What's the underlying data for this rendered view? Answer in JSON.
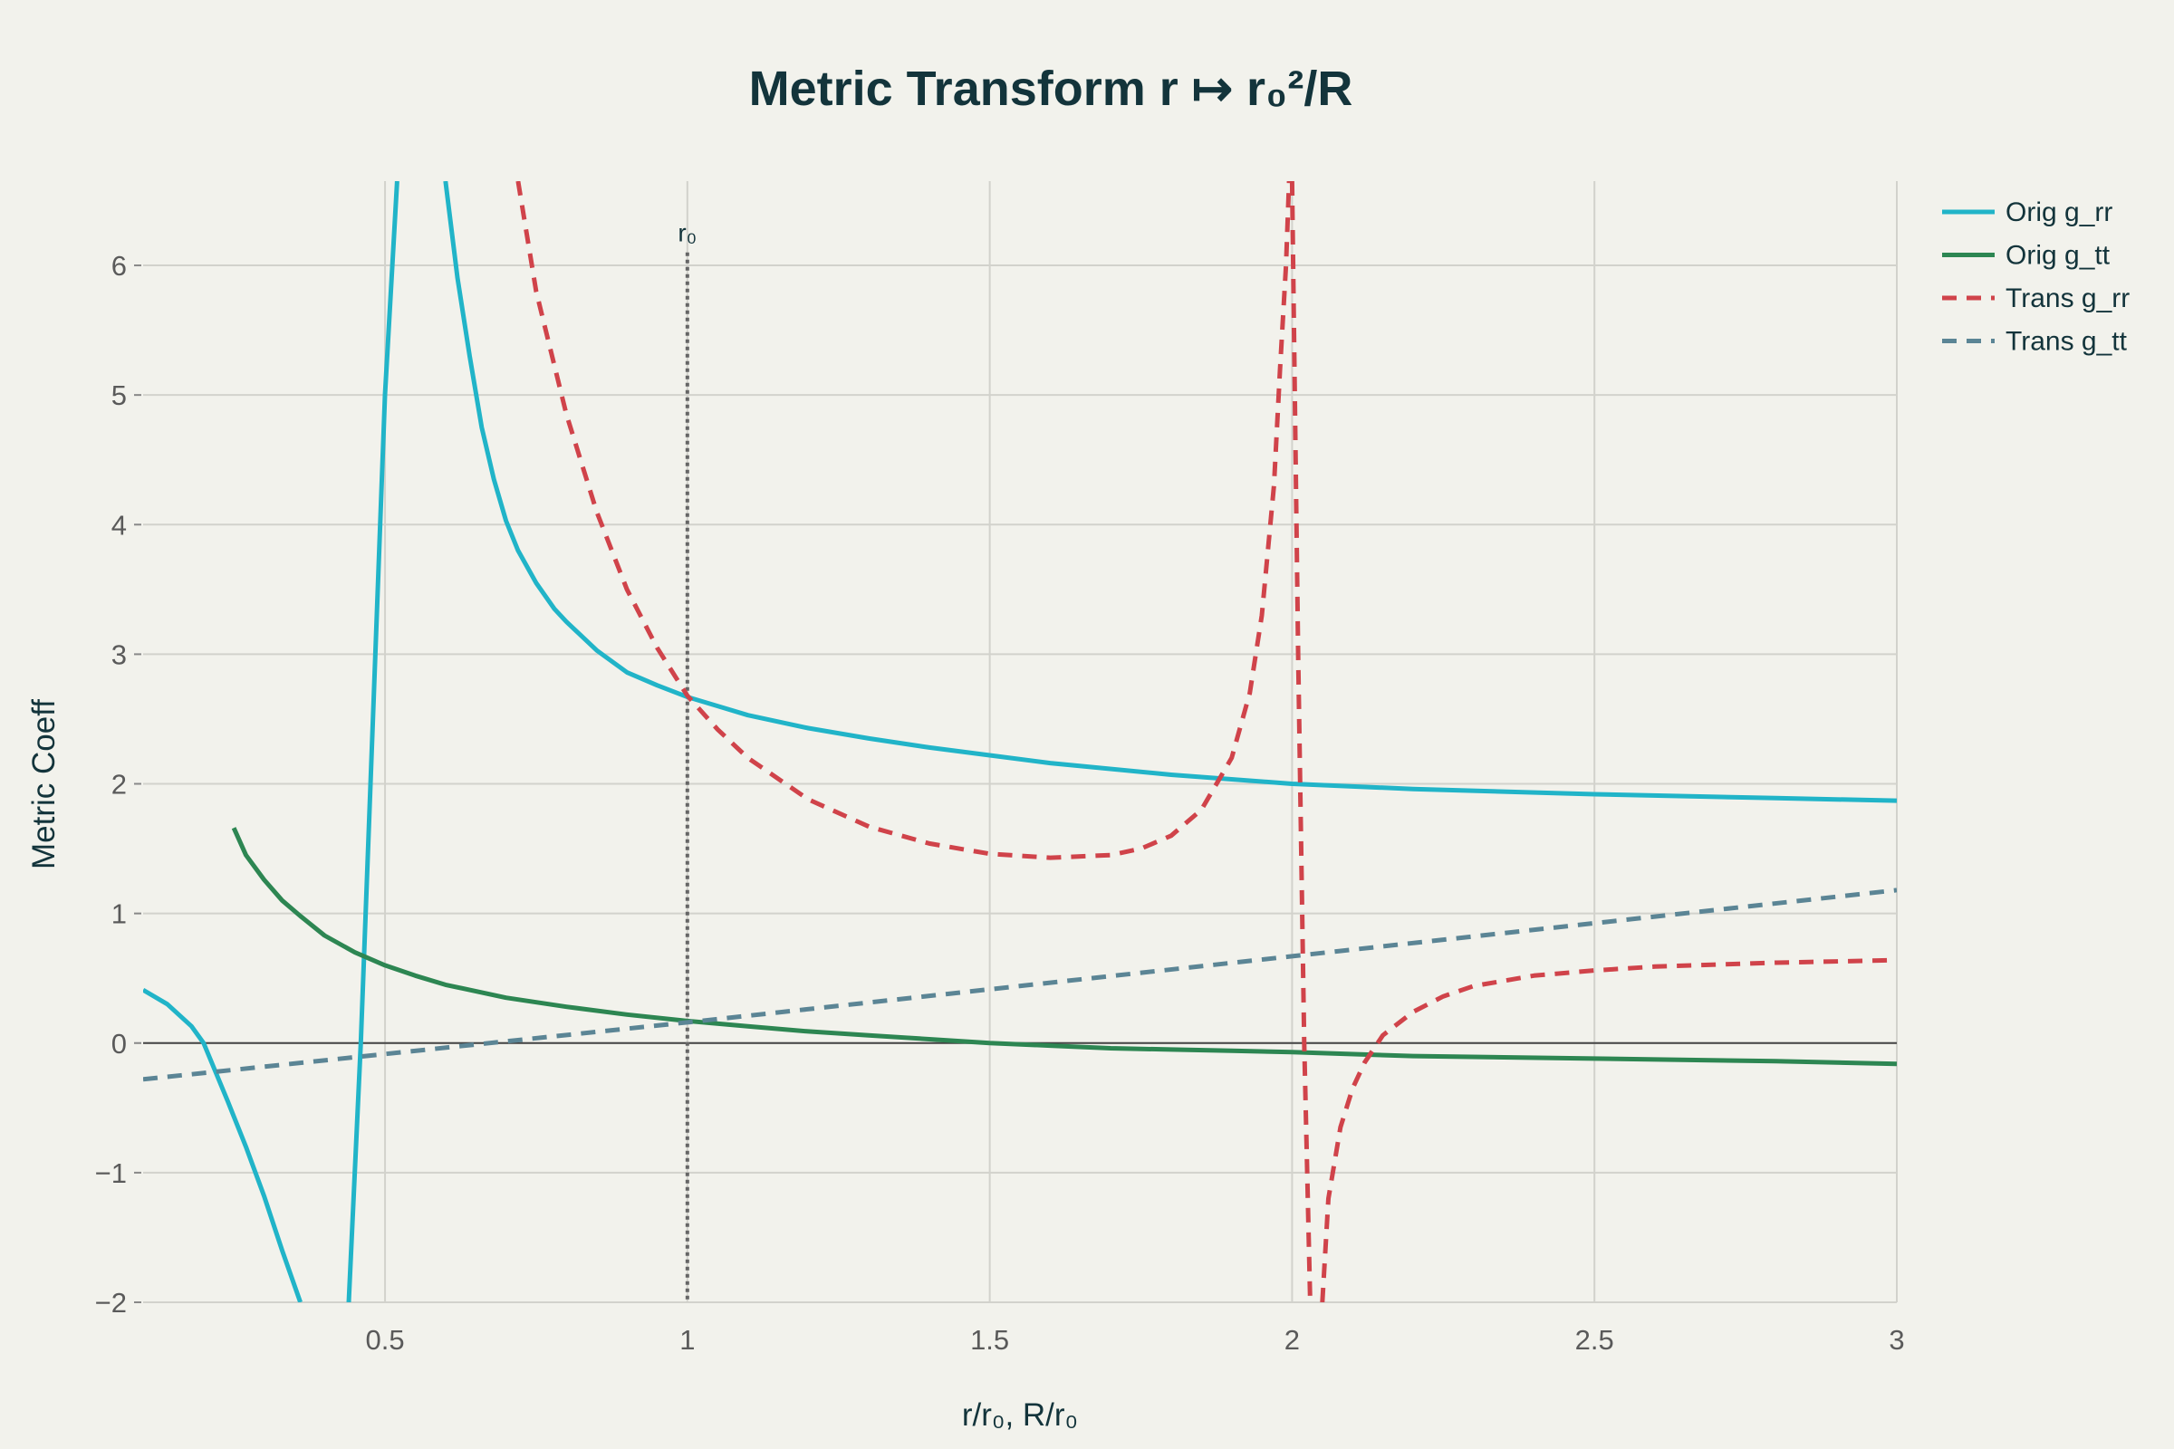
{
  "chart_data": {
    "type": "line",
    "title": "Metric Transform r ↦ r₀²/R",
    "xlabel": "r/r₀, R/r₀",
    "ylabel": "Metric Coeff",
    "xlim": [
      0.1,
      3.0
    ],
    "ylim": [
      -2,
      6.65
    ],
    "x_ticks": [
      0.5,
      1,
      1.5,
      2,
      2.5,
      3
    ],
    "x_tick_labels": [
      "0.5",
      "1",
      "1.5",
      "2",
      "2.5",
      "3"
    ],
    "y_ticks": [
      -2,
      -1,
      0,
      1,
      2,
      3,
      4,
      5,
      6
    ],
    "y_tick_labels": [
      "−2",
      "−1",
      "0",
      "1",
      "2",
      "3",
      "4",
      "5",
      "6"
    ],
    "grid": true,
    "zero_line": true,
    "legend_position": "top-right",
    "annotation": {
      "x": 1,
      "label": "r₀"
    },
    "series": [
      {
        "name": "Orig g_rr",
        "color": "#21b4c8",
        "dash": "solid",
        "segments": [
          {
            "x": [
              0.1,
              0.14,
              0.18,
              0.2,
              0.24,
              0.27,
              0.3,
              0.33,
              0.36
            ],
            "y": [
              0.41,
              0.3,
              0.13,
              0.0,
              -0.45,
              -0.8,
              -1.18,
              -1.6,
              -2.0
            ]
          },
          {
            "x": [
              0.44,
              0.46,
              0.48,
              0.5,
              0.52
            ],
            "y": [
              -2.0,
              0.0,
              2.5,
              5.0,
              6.65
            ]
          },
          {
            "x": [
              0.6,
              0.62,
              0.64,
              0.66,
              0.68,
              0.7,
              0.72,
              0.75,
              0.78,
              0.8,
              0.85,
              0.9,
              0.95,
              1.0,
              1.05,
              1.1,
              1.2,
              1.3,
              1.4,
              1.5,
              1.6,
              1.8,
              2.0,
              2.2,
              2.5,
              2.8,
              3.0
            ],
            "y": [
              6.65,
              5.9,
              5.3,
              4.75,
              4.35,
              4.03,
              3.8,
              3.55,
              3.35,
              3.25,
              3.03,
              2.86,
              2.76,
              2.67,
              2.6,
              2.53,
              2.43,
              2.35,
              2.28,
              2.22,
              2.16,
              2.07,
              2.0,
              1.96,
              1.92,
              1.89,
              1.87
            ]
          }
        ]
      },
      {
        "name": "Orig g_tt",
        "color": "#2d8652",
        "dash": "solid",
        "segments": [
          {
            "x": [
              0.25,
              0.27,
              0.3,
              0.33,
              0.36,
              0.4,
              0.45,
              0.5,
              0.55,
              0.6,
              0.7,
              0.8,
              0.9,
              1.0,
              1.1,
              1.2,
              1.3,
              1.4,
              1.5,
              1.6,
              1.7,
              1.8,
              1.9,
              2.0,
              2.2,
              2.5,
              2.8,
              3.0
            ],
            "y": [
              1.66,
              1.45,
              1.26,
              1.1,
              0.98,
              0.83,
              0.7,
              0.6,
              0.52,
              0.45,
              0.35,
              0.28,
              0.22,
              0.17,
              0.13,
              0.09,
              0.06,
              0.03,
              0.0,
              -0.02,
              -0.04,
              -0.05,
              -0.06,
              -0.07,
              -0.1,
              -0.12,
              -0.14,
              -0.16
            ]
          }
        ]
      },
      {
        "name": "Trans g_rr",
        "color": "#d0434a",
        "dash": "dashed",
        "segments": [
          {
            "x": [
              0.72,
              0.75,
              0.8,
              0.85,
              0.9,
              0.95,
              1.0,
              1.05,
              1.1,
              1.2,
              1.3,
              1.4,
              1.5,
              1.6,
              1.7,
              1.75,
              1.8,
              1.85,
              1.9,
              1.93,
              1.95,
              1.97,
              1.98,
              1.99,
              1.995
            ],
            "y": [
              6.65,
              5.8,
              4.85,
              4.1,
              3.5,
              3.05,
              2.68,
              2.42,
              2.2,
              1.88,
              1.67,
              1.54,
              1.46,
              1.43,
              1.45,
              1.5,
              1.6,
              1.8,
              2.2,
              2.7,
              3.3,
              4.3,
              5.2,
              6.0,
              6.65
            ]
          },
          {
            "x": [
              2.0,
              2.01,
              2.02,
              2.03
            ],
            "y": [
              6.65,
              3.0,
              0.0,
              -2.0
            ]
          },
          {
            "x": [
              2.05,
              2.06,
              2.08,
              2.1,
              2.12,
              2.15,
              2.2,
              2.25,
              2.3,
              2.4,
              2.5,
              2.6,
              2.8,
              3.0
            ],
            "y": [
              -2.0,
              -1.2,
              -0.65,
              -0.35,
              -0.15,
              0.06,
              0.24,
              0.36,
              0.44,
              0.52,
              0.56,
              0.59,
              0.62,
              0.64
            ]
          }
        ]
      },
      {
        "name": "Trans g_tt",
        "color": "#5b8595",
        "dash": "dashed",
        "segments": [
          {
            "x": [
              0.1,
              1.0,
              2.0,
              3.0
            ],
            "y": [
              -0.28,
              0.16,
              0.67,
              1.18
            ]
          }
        ]
      }
    ]
  }
}
